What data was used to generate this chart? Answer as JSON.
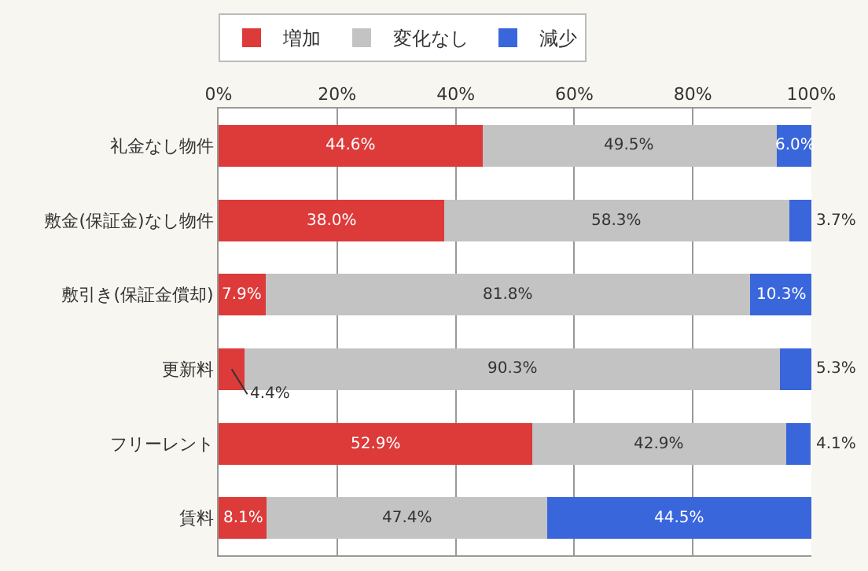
{
  "chart_data": {
    "type": "bar",
    "orientation": "horizontal",
    "stacked": true,
    "categories": [
      "礼金なし物件",
      "敷金(保証金)なし物件",
      "敷引き(保証金償却)",
      "更新料",
      "フリーレント",
      "賃料"
    ],
    "series": [
      {
        "name": "増加",
        "color": "#dd3a3a",
        "values": [
          44.6,
          38.0,
          7.9,
          4.4,
          52.9,
          8.1
        ],
        "value_labels": [
          "44.6%",
          "38.0%",
          "7.9%",
          "4.4%",
          "52.9%",
          "8.1%"
        ]
      },
      {
        "name": "変化なし",
        "color": "#c3c3c3",
        "values": [
          49.5,
          58.3,
          81.8,
          90.3,
          42.9,
          47.4
        ],
        "value_labels": [
          "49.5%",
          "58.3%",
          "81.8%",
          "90.3%",
          "42.9%",
          "47.4%"
        ]
      },
      {
        "name": "減少",
        "color": "#3a66dc",
        "values": [
          6.0,
          3.7,
          10.3,
          5.3,
          4.1,
          44.5
        ],
        "value_labels": [
          "6.0%",
          "3.7%",
          "10.3%",
          "5.3%",
          "4.1%",
          "44.5%"
        ]
      }
    ],
    "xlim": [
      0,
      100
    ],
    "xticks": [
      {
        "value": 0,
        "label": "0%"
      },
      {
        "value": 20,
        "label": "20%"
      },
      {
        "value": 40,
        "label": "40%"
      },
      {
        "value": 60,
        "label": "60%"
      },
      {
        "value": 80,
        "label": "80%"
      },
      {
        "value": 100,
        "label": "100%"
      }
    ],
    "grid": "x",
    "legend": "top left"
  }
}
